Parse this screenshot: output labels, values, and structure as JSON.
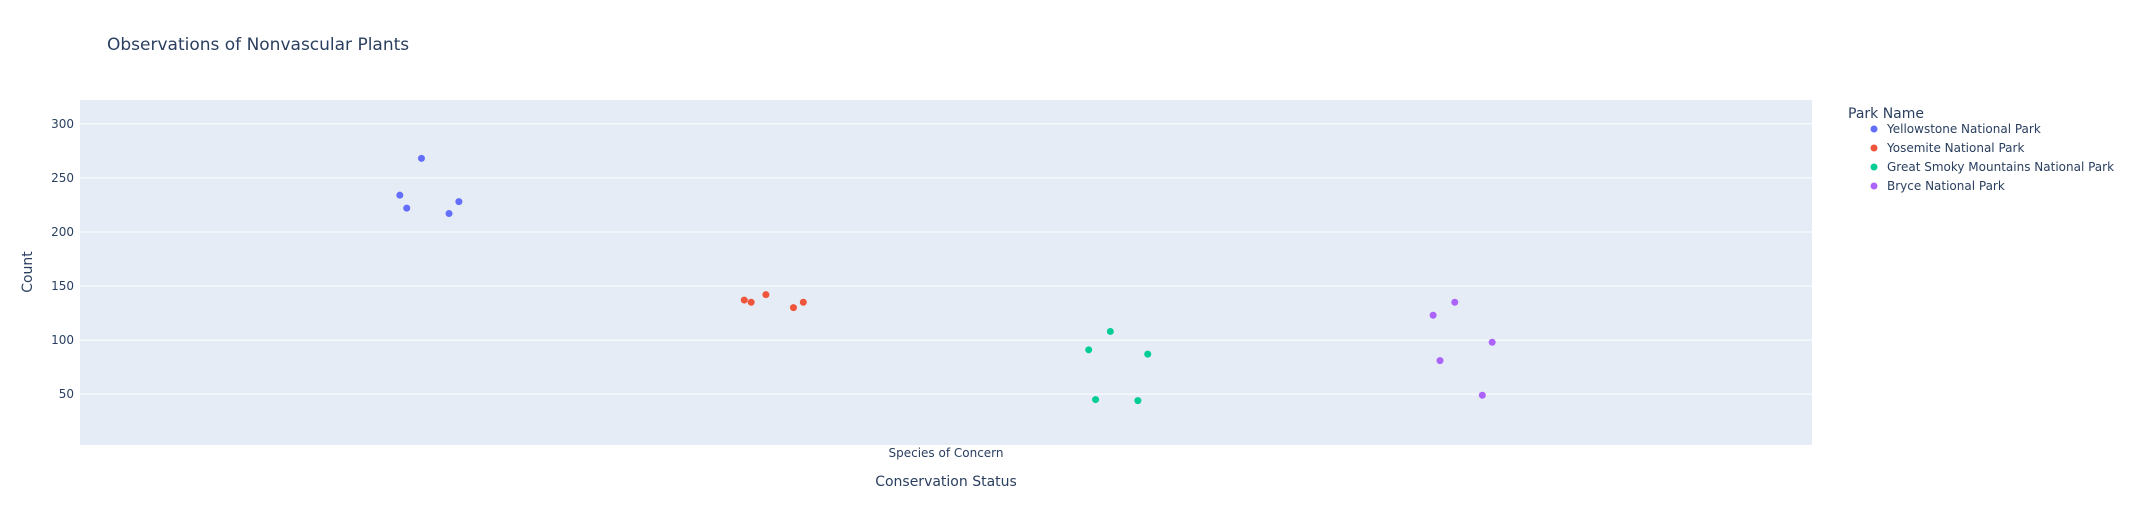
{
  "chart_data": {
    "type": "scatter",
    "title": "Observations of Nonvascular Plants",
    "xlabel": "Conservation Status",
    "ylabel": "Count",
    "categories": [
      "Species of Concern"
    ],
    "ylim": [
      3,
      322
    ],
    "yticks": [
      50,
      100,
      150,
      200,
      250,
      300
    ],
    "grid": true,
    "legend": {
      "title": "Park Name",
      "position": "right"
    },
    "series": [
      {
        "name": "Yellowstone National Park",
        "color": "#636efa",
        "points": [
          {
            "x": -0.555,
            "y": 234
          },
          {
            "x": -0.548,
            "y": 222
          },
          {
            "x": -0.533,
            "y": 268
          },
          {
            "x": -0.505,
            "y": 217
          },
          {
            "x": -0.495,
            "y": 228
          }
        ]
      },
      {
        "name": "Yosemite National Park",
        "color": "#EF553B",
        "points": [
          {
            "x": -0.205,
            "y": 137
          },
          {
            "x": -0.198,
            "y": 135
          },
          {
            "x": -0.183,
            "y": 142
          },
          {
            "x": -0.155,
            "y": 130
          },
          {
            "x": -0.145,
            "y": 135
          }
        ]
      },
      {
        "name": "Great Smoky Mountains National Park",
        "color": "#00cc96",
        "points": [
          {
            "x": 0.145,
            "y": 91
          },
          {
            "x": 0.152,
            "y": 45
          },
          {
            "x": 0.167,
            "y": 108
          },
          {
            "x": 0.195,
            "y": 44
          },
          {
            "x": 0.205,
            "y": 87
          }
        ]
      },
      {
        "name": "Bryce National Park",
        "color": "#ab63fa",
        "points": [
          {
            "x": 0.495,
            "y": 123
          },
          {
            "x": 0.502,
            "y": 81
          },
          {
            "x": 0.517,
            "y": 135
          },
          {
            "x": 0.545,
            "y": 49
          },
          {
            "x": 0.555,
            "y": 98
          }
        ]
      }
    ]
  }
}
